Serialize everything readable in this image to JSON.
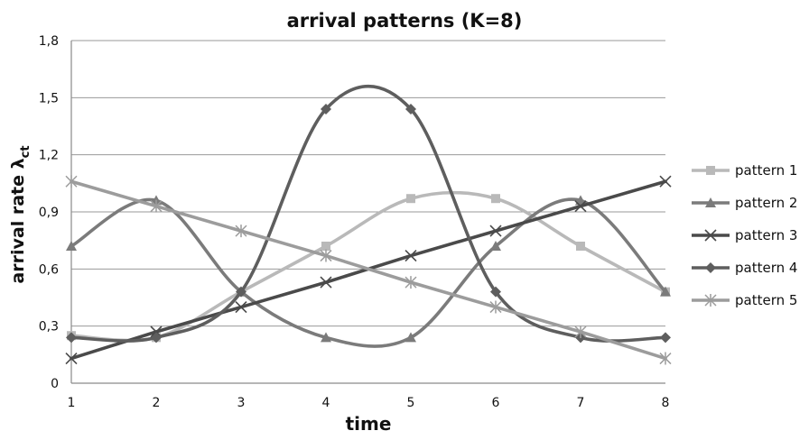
{
  "chart_data": {
    "type": "line",
    "title": "arrival patterns (K=8)",
    "xlabel": "time",
    "ylabel": "arrival rate λ",
    "ylabel_subscript": "ct",
    "x": [
      1,
      2,
      3,
      4,
      5,
      6,
      7,
      8
    ],
    "x_tick_labels": [
      "1",
      "2",
      "3",
      "4",
      "5",
      "6",
      "7",
      "8"
    ],
    "ylim": [
      0,
      1.8
    ],
    "y_ticks": [
      0,
      0.3,
      0.6,
      0.9,
      1.2,
      1.5,
      1.8
    ],
    "y_tick_labels": [
      "0",
      "0,3",
      "0,6",
      "0,9",
      "1,2",
      "1,5",
      "1,8"
    ],
    "grid": "horizontal",
    "legend_position": "right",
    "series": [
      {
        "name": "pattern 1",
        "marker": "square",
        "color": "#b9b9b9",
        "smooth": true,
        "values": [
          0.25,
          0.24,
          0.48,
          0.72,
          0.97,
          0.97,
          0.72,
          0.48
        ]
      },
      {
        "name": "pattern 2",
        "marker": "triangle",
        "color": "#7b7b7b",
        "smooth": true,
        "values": [
          0.72,
          0.96,
          0.48,
          0.24,
          0.24,
          0.72,
          0.96,
          0.48
        ]
      },
      {
        "name": "pattern 3",
        "marker": "x",
        "color": "#4a4a4a",
        "smooth": false,
        "values": [
          0.13,
          0.27,
          0.4,
          0.53,
          0.67,
          0.8,
          0.93,
          1.06
        ]
      },
      {
        "name": "pattern 4",
        "marker": "diamond",
        "color": "#5e5e5e",
        "smooth": true,
        "values": [
          0.24,
          0.24,
          0.48,
          1.44,
          1.44,
          0.48,
          0.24,
          0.24
        ]
      },
      {
        "name": "pattern 5",
        "marker": "asterisk",
        "color": "#9c9c9c",
        "smooth": false,
        "values": [
          1.06,
          0.93,
          0.8,
          0.67,
          0.53,
          0.4,
          0.27,
          0.13
        ]
      }
    ]
  }
}
